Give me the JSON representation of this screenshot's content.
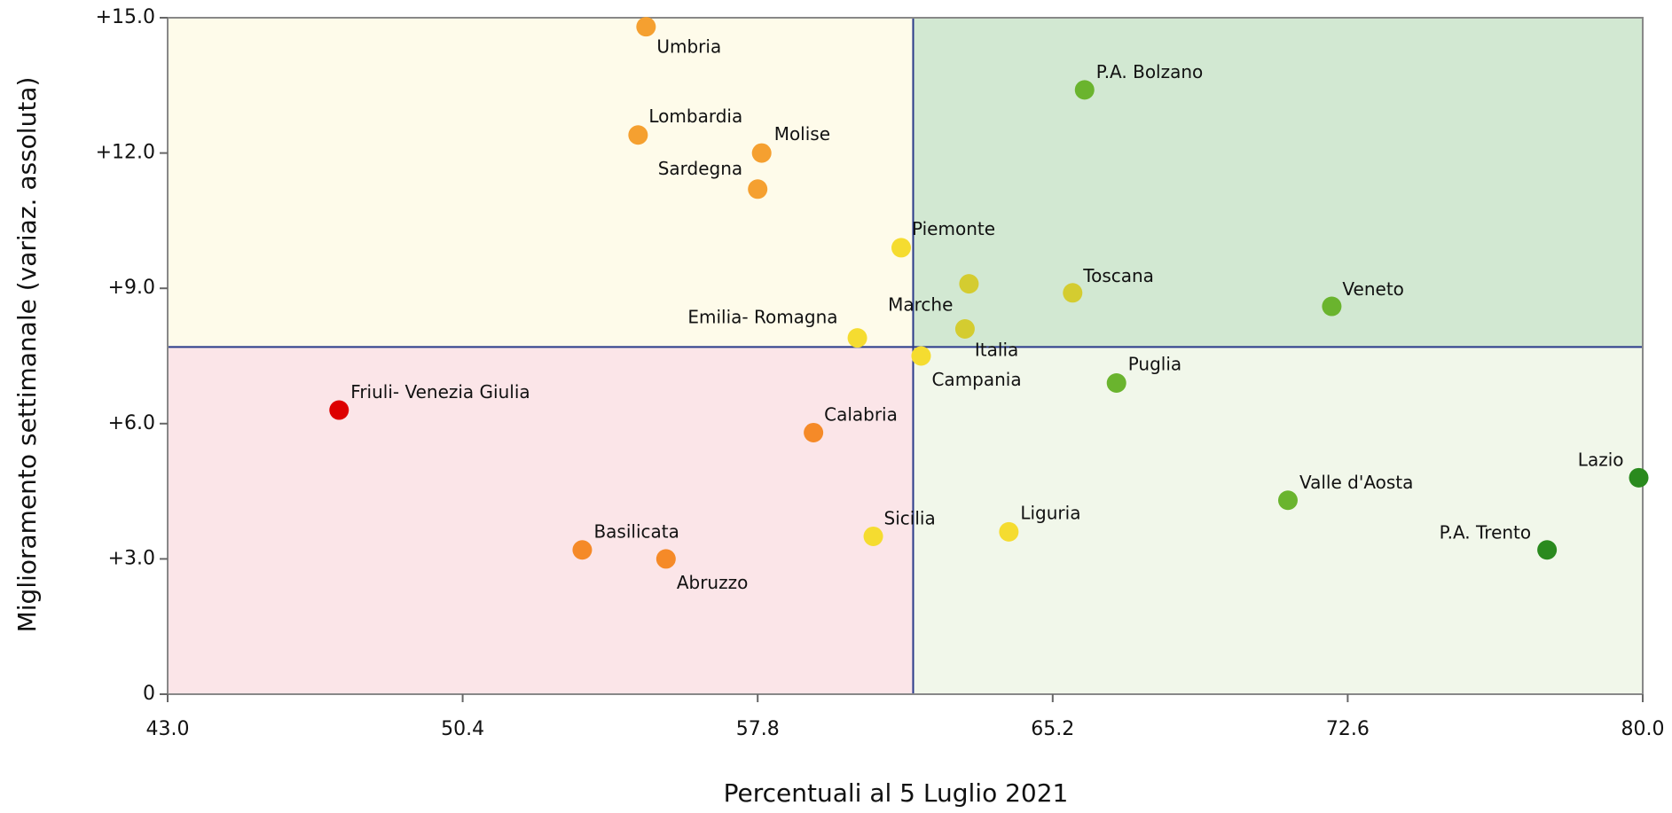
{
  "chart_data": {
    "type": "scatter",
    "xlabel": "Percentuali al 5 Luglio 2021",
    "ylabel": "Miglioramento settimanale (variaz. assoluta)",
    "labels": [
      "Umbria",
      "Lombardia",
      "Molise",
      "Sardegna",
      "Piemonte",
      "Marche",
      "Italia",
      "Toscana",
      "Veneto",
      "Emilia- Romagna",
      "Campania",
      "Puglia",
      "Friuli- Venezia Giulia",
      "Calabria",
      "Lazio",
      "Valle d'Aosta",
      "Sicilia",
      "Liguria",
      "Basilicata",
      "Abruzzo",
      "P.A. Trento",
      "P.A. Bolzano"
    ],
    "x": [
      55.0,
      54.8,
      57.9,
      57.8,
      61.4,
      63.1,
      63.0,
      65.7,
      72.2,
      60.3,
      61.9,
      66.8,
      47.3,
      59.2,
      79.9,
      71.1,
      60.7,
      64.1,
      53.4,
      55.5,
      77.6,
      66.0
    ],
    "values": [
      14.8,
      12.4,
      12.0,
      11.2,
      9.9,
      9.1,
      8.1,
      8.9,
      8.6,
      7.9,
      7.5,
      6.9,
      6.3,
      5.8,
      4.8,
      4.3,
      3.5,
      3.6,
      3.2,
      3.0,
      3.2,
      13.4
    ],
    "colors": [
      "#f5a030",
      "#f5a030",
      "#f5a030",
      "#f5a030",
      "#f5dc30",
      "#d4cc30",
      "#d4cc30",
      "#d4cc30",
      "#6ab42e",
      "#f5dc30",
      "#f5dc30",
      "#6ab42e",
      "#dd0000",
      "#f58a28",
      "#2a8a1e",
      "#6ab42e",
      "#f5dc30",
      "#f5dc30",
      "#f58a28",
      "#f58a28",
      "#2a8a1e",
      "#6ab42e"
    ],
    "xref": 61.7,
    "yref": 7.7,
    "quadrant_colors": {
      "top_left": "#fefbea",
      "top_right": "#d2e8d2",
      "bottom_left": "#fbe5e8",
      "bottom_right": "#f1f7ea"
    },
    "xlim": [
      43,
      80
    ],
    "ylim": [
      0,
      15
    ],
    "xticks": [
      {
        "value": 43,
        "label": "43.0"
      },
      {
        "value": 50.4,
        "label": "50.4"
      },
      {
        "value": 57.8,
        "label": "57.8"
      },
      {
        "value": 65.2,
        "label": "65.2"
      },
      {
        "value": 72.6,
        "label": "72.6"
      },
      {
        "value": 80,
        "label": "80.0"
      }
    ],
    "yticks": [
      0,
      {
        "value": 3,
        "label": "+3.0"
      },
      {
        "value": 6,
        "label": "+6.0"
      },
      {
        "value": 9,
        "label": "+9.0"
      },
      {
        "value": 12,
        "label": "+12.0"
      },
      {
        "value": 15,
        "label": "+15.0"
      }
    ]
  }
}
